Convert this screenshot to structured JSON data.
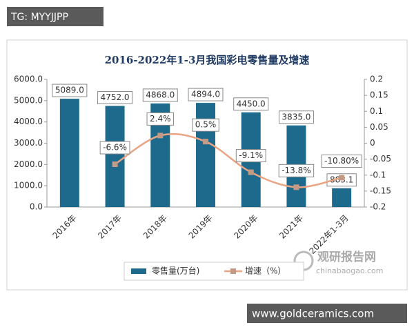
{
  "watermarks": {
    "top_left": "TG: MYYJJPP",
    "bottom_right": "www.goldceramics.com",
    "logo_name": "观研报告网",
    "logo_url": "chinabaogao.com"
  },
  "chart_data": {
    "type": "bar-line",
    "title": "2016-2022年1-3月我国彩电零售量及增速",
    "categories": [
      "2016年",
      "2017年",
      "2018年",
      "2019年",
      "2020年",
      "2021年",
      "2022年1-3月"
    ],
    "series": [
      {
        "name": "零售量(万台)",
        "type": "bar",
        "color": "#1e6a8c",
        "values": [
          5089.0,
          4752.0,
          4868.0,
          4894.0,
          4450.0,
          3835.0,
          883.1
        ],
        "value_labels": [
          "5089.0",
          "4752.0",
          "4868.0",
          "4894.0",
          "4450.0",
          "3835.0",
          "883.1"
        ]
      },
      {
        "name": "增速（%）",
        "type": "line",
        "axis": "y2",
        "color": "#e9a483",
        "marker_color": "#c29a85",
        "values": [
          null,
          -0.066,
          0.024,
          0.005,
          -0.091,
          -0.138,
          -0.108
        ],
        "value_labels": [
          null,
          "-6.6%",
          "2.4%",
          "0.5%",
          "-9.1%",
          "-13.8%",
          "-10.80%"
        ]
      }
    ],
    "ylim": [
      0,
      6000
    ],
    "yticks": [
      {
        "value": 0,
        "label": "0.0"
      },
      {
        "value": 1000,
        "label": "1000.0"
      },
      {
        "value": 2000,
        "label": "2000.0"
      },
      {
        "value": 3000,
        "label": "3000.0"
      },
      {
        "value": 4000,
        "label": "4000.0"
      },
      {
        "value": 5000,
        "label": "5000.0"
      },
      {
        "value": 6000,
        "label": "6000.0"
      }
    ],
    "y2lim": [
      -0.2,
      0.2
    ],
    "y2ticks": [
      -0.2,
      -0.15,
      -0.1,
      -0.05,
      0,
      0.05,
      0.1,
      0.15,
      0.2
    ],
    "legend": "bottom"
  }
}
